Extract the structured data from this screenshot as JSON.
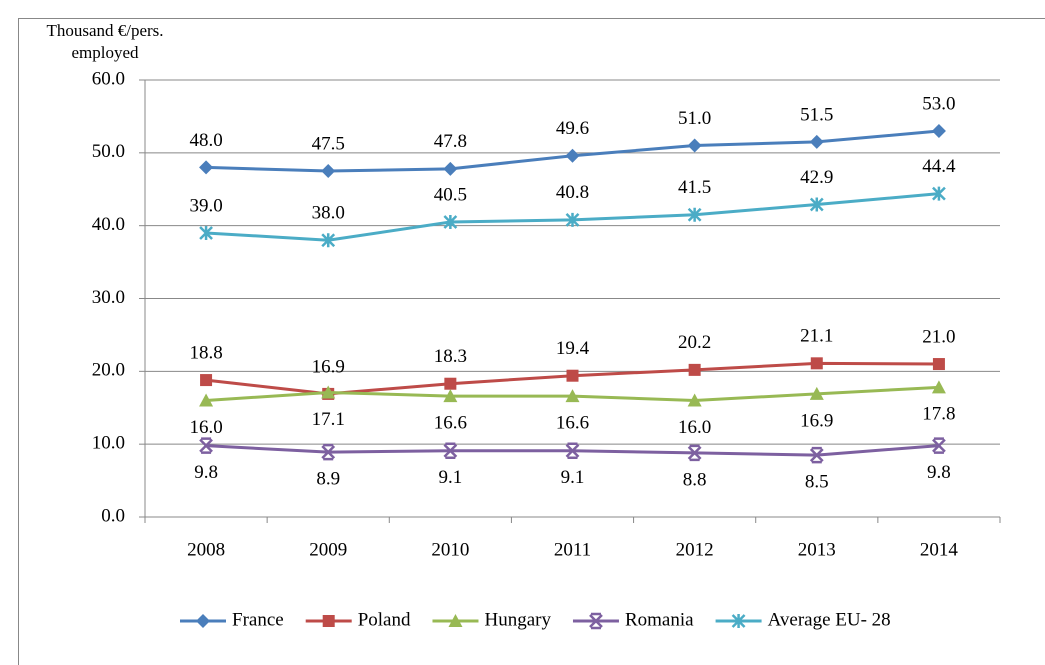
{
  "chart_data": {
    "type": "line",
    "y_label": "Thousand €/pers. employed",
    "categories": [
      "2008",
      "2009",
      "2010",
      "2011",
      "2012",
      "2013",
      "2014"
    ],
    "ylim": [
      0,
      60
    ],
    "yticks": [
      {
        "value": 0,
        "label": "0.0"
      },
      {
        "value": 10,
        "label": "10.0"
      },
      {
        "value": 20,
        "label": "20.0"
      },
      {
        "value": 30,
        "label": "30.0"
      },
      {
        "value": 40,
        "label": "40.0"
      },
      {
        "value": 50,
        "label": "50.0"
      },
      {
        "value": 60,
        "label": "60.0"
      }
    ],
    "grid": true,
    "legend": "bottom",
    "series": [
      {
        "name": "France",
        "color": "#4a7ebb",
        "marker": "diamond",
        "label_position": "above",
        "values": [
          48.0,
          47.5,
          47.8,
          49.6,
          51.0,
          51.5,
          53.0
        ],
        "value_labels": [
          "48.0",
          "47.5",
          "47.8",
          "49.6",
          "51.0",
          "51.5",
          "53.0"
        ]
      },
      {
        "name": "Poland",
        "color": "#be4b48",
        "marker": "square",
        "label_position": "above",
        "values": [
          18.8,
          16.9,
          18.3,
          19.4,
          20.2,
          21.1,
          21.0
        ],
        "value_labels": [
          "18.8",
          "16.9",
          "18.3",
          "19.4",
          "20.2",
          "21.1",
          "21.0"
        ]
      },
      {
        "name": "Hungary",
        "color": "#98b954",
        "marker": "triangle",
        "label_position": "below",
        "values": [
          16.0,
          17.1,
          16.6,
          16.6,
          16.0,
          16.9,
          17.8
        ],
        "value_labels": [
          "16.0",
          "17.1",
          "16.6",
          "16.6",
          "16.0",
          "16.9",
          "17.8"
        ]
      },
      {
        "name": "Romania",
        "color": "#7d60a0",
        "marker": "x",
        "label_position": "below",
        "values": [
          9.8,
          8.9,
          9.1,
          9.1,
          8.8,
          8.5,
          9.8
        ],
        "value_labels": [
          "9.8",
          "8.9",
          "9.1",
          "9.1",
          "8.8",
          "8.5",
          "9.8"
        ]
      },
      {
        "name": "Average EU- 28",
        "color": "#4bacc6",
        "marker": "star",
        "label_position": "above",
        "values": [
          39.0,
          38.0,
          40.5,
          40.8,
          41.5,
          42.9,
          44.4
        ],
        "value_labels": [
          "39.0",
          "38.0",
          "40.5",
          "40.8",
          "41.5",
          "42.9",
          "44.4"
        ]
      }
    ]
  }
}
